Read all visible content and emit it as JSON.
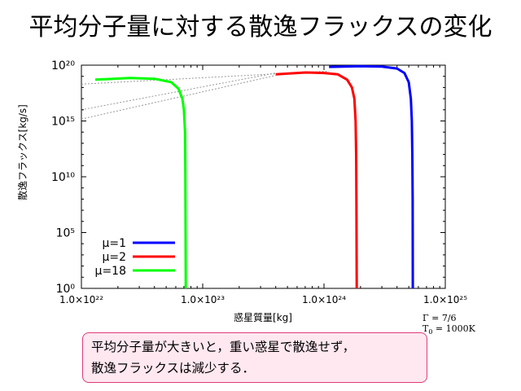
{
  "slide": {
    "title": "平均分子量に対する散逸フラックスの変化",
    "note_line1": "平均分子量が大きいと，重い惑星で散逸せず，",
    "note_line2": "散逸フラックスは減少する．",
    "params_line1": "Γ = 7/6",
    "params_line2_prefix": "T",
    "params_line2_sub": "0",
    "params_line2_suffix": " = 1000K"
  },
  "chart_data": {
    "type": "line",
    "xlabel": "惑星質量[kg]",
    "ylabel": "散逸フラックス[kg/s]",
    "xscale": "log",
    "yscale": "log",
    "xlim": [
      1e+22,
      1e+25
    ],
    "ylim": [
      1,
      1e+20
    ],
    "xticks": [
      {
        "value": 1e+22,
        "label": "1.0×10²²"
      },
      {
        "value": 1e+23,
        "label": "1.0×10²³"
      },
      {
        "value": 1e+24,
        "label": "1.0×10²⁴"
      },
      {
        "value": 1e+25,
        "label": "1.0×10²⁵"
      }
    ],
    "yticks": [
      {
        "value": 1,
        "label": "10⁰"
      },
      {
        "value": 100000.0,
        "label": "10⁵"
      },
      {
        "value": 10000000000.0,
        "label": "10¹⁰"
      },
      {
        "value": 1000000000000000.0,
        "label": "10¹⁵"
      },
      {
        "value": 1e+20,
        "label": "10²⁰"
      }
    ],
    "grid": false,
    "legend_position": "bottom-left",
    "series": [
      {
        "name": "μ=1",
        "color": "#0000ff",
        "x": [
          1.1e+24,
          2e+24,
          3e+24,
          4e+24,
          4.6e+24,
          5e+24,
          5.2e+24,
          5.3e+24,
          5.35e+24,
          5.38e+24,
          5.4e+24
        ],
        "y": [
          7e+19,
          8e+19,
          7.5e+19,
          5e+19,
          2e+19,
          3e+18,
          1e+17,
          1000000000000000.0,
          1000000000000.0,
          100000000.0,
          1
        ]
      },
      {
        "name": "μ=2",
        "color": "#ff0000",
        "x": [
          4e+23,
          7e+23,
          1e+24,
          1.3e+24,
          1.55e+24,
          1.7e+24,
          1.78e+24,
          1.82e+24,
          1.84e+24,
          1.85e+24,
          1.86e+24
        ],
        "y": [
          1.5e+19,
          2.2e+19,
          2e+19,
          1.5e+19,
          5e+18,
          1e+18,
          1e+17,
          1000000000000000.0,
          1000000000000.0,
          100000000.0,
          1
        ]
      },
      {
        "name": "μ=18",
        "color": "#00ff00",
        "x": [
          1.3e+22,
          2.5e+22,
          4e+22,
          5.5e+22,
          6.3e+22,
          6.8e+22,
          7e+22,
          7.15e+22,
          7.2e+22,
          7.25e+22
        ],
        "y": [
          5e+18,
          7e+18,
          6e+18,
          3e+18,
          8e+17,
          1e+17,
          1e+16,
          100000000000000.0,
          10000000000.0,
          1
        ]
      }
    ],
    "guide_lines": [
      {
        "x": [
          1e+22,
          1.1e+24
        ],
        "y": [
          2e+18,
          3e+19
        ]
      },
      {
        "x": [
          1e+22,
          4e+23
        ],
        "y": [
          1e+16,
          2e+19
        ]
      },
      {
        "x": [
          1e+22,
          4e+23
        ],
        "y": [
          1500000000000000.0,
          1.2e+19
        ]
      }
    ]
  }
}
